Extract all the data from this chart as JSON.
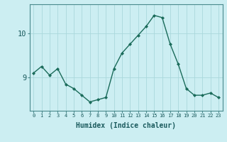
{
  "xlabel": "Humidex (Indice chaleur)",
  "ylabel": "",
  "x": [
    0,
    1,
    2,
    3,
    4,
    5,
    6,
    7,
    8,
    9,
    10,
    11,
    12,
    13,
    14,
    15,
    16,
    17,
    18,
    19,
    20,
    21,
    22,
    23
  ],
  "y": [
    9.1,
    9.25,
    9.05,
    9.2,
    8.85,
    8.75,
    8.6,
    8.45,
    8.5,
    8.55,
    9.2,
    9.55,
    9.75,
    9.95,
    10.15,
    10.4,
    10.35,
    9.75,
    9.3,
    8.75,
    8.6,
    8.6,
    8.65,
    8.55
  ],
  "line_color": "#1a6b5a",
  "marker": "D",
  "marker_size": 2.0,
  "background_color": "#cceef2",
  "grid_color": "#aad8dc",
  "axis_color": "#4a8a8d",
  "text_color": "#1a5a5d",
  "yticks": [
    9,
    10
  ],
  "ylim": [
    8.25,
    10.65
  ],
  "xlim": [
    -0.5,
    23.5
  ],
  "xtick_fontsize": 5.0,
  "ytick_fontsize": 7.5,
  "xlabel_fontsize": 7.0,
  "linewidth": 1.0
}
